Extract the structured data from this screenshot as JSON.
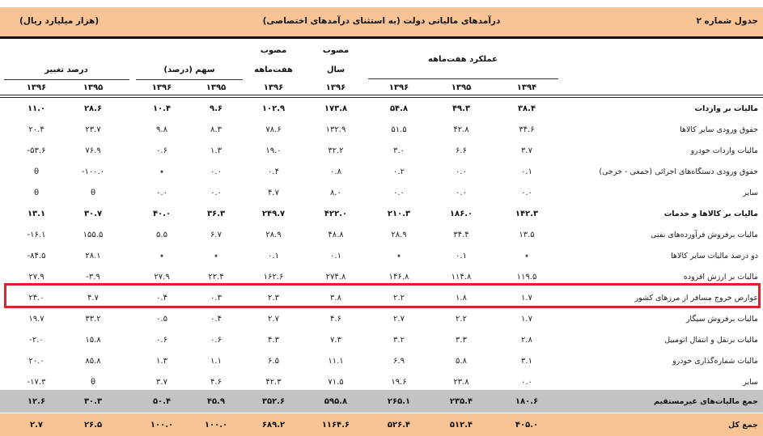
{
  "header": {
    "table_number": "جدول شماره ۲",
    "title": "درآمدهای مالیاتی دولت (به استثنای درآمدهای اختصاصی)",
    "unit": "(هزار میلیارد ریال)"
  },
  "columns": {
    "performance_group": "عملکرد هفت‌ماهه",
    "approved_year_top": "مصوب",
    "approved_year_bottom": "سال",
    "approved_7m_top": "مصوب",
    "approved_7m_bottom": "هفت‌ماهه",
    "share_group": "سهم (درصد)",
    "change_group": "درصد تغییر",
    "years": [
      "۱۳۹۴",
      "۱۳۹۵",
      "۱۳۹۶",
      "۱۳۹۶",
      "۱۳۹۶",
      "۱۳۹۵",
      "۱۳۹۶",
      "۱۳۹۵",
      "۱۳۹۶"
    ]
  },
  "highlight_color": "#d9232e",
  "rows": [
    {
      "label": "مالیات بر واردات",
      "type": "subtotal",
      "values": [
        "۳۸.۴",
        "۴۹.۳",
        "۵۴.۸",
        "۱۷۳.۸",
        "۱۰۲.۹",
        "۹.۶",
        "۱۰.۴",
        "۲۸.۶",
        "۱۱.۰"
      ]
    },
    {
      "label": "حقوق ورودی سایر کالاها",
      "type": "item",
      "values": [
        "۳۴.۶",
        "۴۲.۸",
        "۵۱.۵",
        "۱۳۲.۹",
        "۷۸.۶",
        "۸.۳",
        "۹.۸",
        "۲۳.۷",
        "۲۰.۴"
      ]
    },
    {
      "label": "مالیات واردات خودرو",
      "type": "item",
      "values": [
        "۳.۷",
        "۶.۶",
        "۳.۰",
        "۳۲.۲",
        "۱۹.۰",
        "۱.۳",
        "۰.۶",
        "۷۶.۹",
        "-۵۳.۶"
      ]
    },
    {
      "label": "حقوق ورودی دستگاه‌های اجرائی (جمعی - خرجی)",
      "type": "item",
      "values": [
        "۰.۱",
        "۰.۰",
        "۰.۲",
        "۰.۸",
        "۰.۴",
        "۰.۰",
        "٭",
        "-۱۰۰.۰",
        "θ"
      ]
    },
    {
      "label": "سایر",
      "type": "item",
      "values": [
        "۰.۰",
        "۰.۰",
        "۰.۰",
        "۸.۰",
        "۴.۷",
        "۰.۰",
        "۰.۰",
        "θ",
        "θ"
      ]
    },
    {
      "label": "مالیات بر کالاها و خدمات",
      "type": "subtotal",
      "values": [
        "۱۴۲.۳",
        "۱۸۶.۰",
        "۲۱۰.۳",
        "۴۲۲.۰",
        "۲۴۹.۷",
        "۳۶.۳",
        "۴۰.۰",
        "۳۰.۷",
        "۱۳.۱"
      ]
    },
    {
      "label": "مالیات برفروش فرآورده‌های نفتی",
      "type": "item",
      "values": [
        "۱۳.۵",
        "۳۴.۴",
        "۲۸.۹",
        "۴۸.۸",
        "۲۸.۹",
        "۶.۷",
        "۵.۵",
        "۱۵۵.۵",
        "-۱۶.۱"
      ]
    },
    {
      "label": "دو درصد مالیات سایر کالاها",
      "type": "item",
      "values": [
        "٭",
        "۰.۱",
        "٭",
        "۰.۱",
        "۰.۱",
        "٭",
        "٭",
        "۲۸.۱",
        "-۸۴.۵"
      ]
    },
    {
      "label": "مالیات بر ارزش افزوده",
      "type": "item",
      "values": [
        "۱۱۹.۵",
        "۱۱۴.۸",
        "۱۴۶.۸",
        "۲۷۴.۸",
        "۱۶۲.۶",
        "۲۲.۴",
        "۲۷.۹",
        "-۳.۹",
        "۲۷.۹"
      ]
    },
    {
      "label": "عوارض خروج مسافر از مرزهای کشور",
      "type": "highlighted",
      "values": [
        "۱.۷",
        "۱.۸",
        "۲.۲",
        "۳.۸",
        "۲.۳",
        "۰.۳",
        "۰.۴",
        "۴.۷",
        "۲۴.۰"
      ]
    },
    {
      "label": "مالیات برفروش سیگار",
      "type": "item",
      "values": [
        "۱.۷",
        "۲.۲",
        "۲.۷",
        "۴.۶",
        "۲.۷",
        "۰.۴",
        "۰.۵",
        "۳۳.۲",
        "۱۹.۷"
      ]
    },
    {
      "label": "مالیات برنقل و انتقال اتومبیل",
      "type": "item",
      "values": [
        "۲.۸",
        "۳.۳",
        "۳.۲",
        "۷.۳",
        "۴.۳",
        "۰.۶",
        "۰.۶",
        "۱۵.۸",
        "-۲.۰"
      ]
    },
    {
      "label": "مالیات شماره‌گذاری خودرو",
      "type": "item",
      "values": [
        "۳.۱",
        "۵.۸",
        "۶.۹",
        "۱۱.۱",
        "۶.۵",
        "۱.۱",
        "۱.۳",
        "۸۵.۸",
        "۲۰.۰"
      ]
    },
    {
      "label": "سایر",
      "type": "item",
      "values": [
        "۰.۰",
        "۲۳.۸",
        "۱۹.۶",
        "۷۱.۵",
        "۴۲.۳",
        "۴.۶",
        "۳.۷",
        "θ",
        "-۱۷.۳"
      ]
    },
    {
      "label": "جمع مالیات‌های غیرمستقیم",
      "type": "gray-total",
      "values": [
        "۱۸۰.۶",
        "۲۳۵.۴",
        "۲۶۵.۱",
        "۵۹۵.۸",
        "۳۵۲.۶",
        "۴۵.۹",
        "۵۰.۴",
        "۳۰.۳",
        "۱۲.۶"
      ]
    },
    {
      "label": "جمع کل",
      "type": "grand-total",
      "values": [
        "۴۰۵.۰",
        "۵۱۲.۴",
        "۵۲۶.۴",
        "۱۱۶۴.۶",
        "۶۸۹.۲",
        "۱۰۰.۰",
        "۱۰۰.۰",
        "۲۶.۵",
        "۲.۷"
      ]
    }
  ]
}
